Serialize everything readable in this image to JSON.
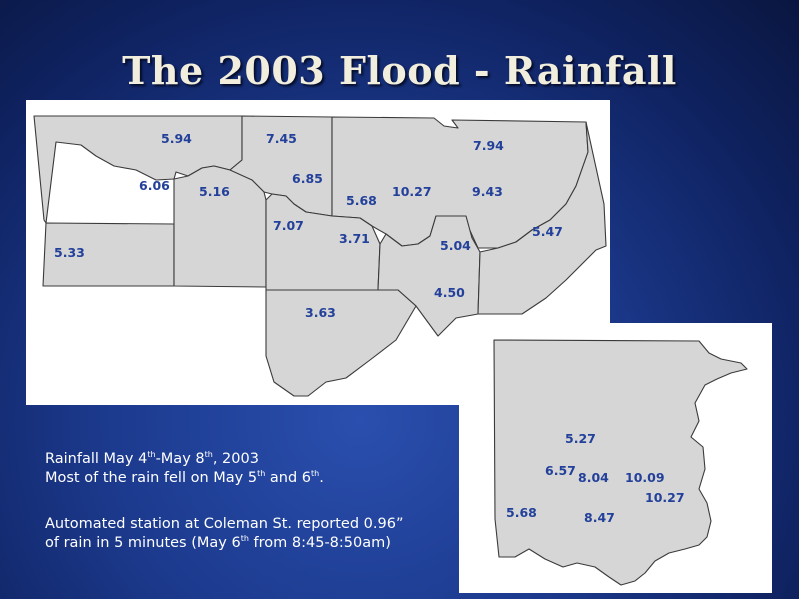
{
  "title": "The 2003 Flood - Rainfall",
  "main_map": {
    "labels": [
      "5.94",
      "7.45",
      "7.94",
      "6.06",
      "5.16",
      "6.85",
      "5.68",
      "10.27",
      "9.43",
      "7.07",
      "3.71",
      "5.04",
      "5.47",
      "5.33",
      "4.50",
      "3.63"
    ]
  },
  "inset_map": {
    "labels": [
      "5.27",
      "6.57",
      "8.04",
      "10.09",
      "10.27",
      "5.68",
      "8.47"
    ]
  },
  "caption": {
    "line1": {
      "a": "Rainfall May 4",
      "s1": "th",
      "b": "-May 8",
      "s2": "th",
      "c": ", 2003"
    },
    "line2": {
      "a": "Most of the rain fell on May 5",
      "s1": "th",
      "b": " and 6",
      "s2": "th",
      "c": "."
    },
    "line3": {
      "a": "Automated station at Coleman St. reported 0.96”"
    },
    "line4": {
      "a": "of rain in 5 minutes (May 6",
      "s1": "th",
      "b": " from 8:45-8:50am)"
    }
  },
  "colors": {
    "region_fill": "#d6d6d6",
    "label_color": "#23409a",
    "background": "#1c3a8e"
  }
}
